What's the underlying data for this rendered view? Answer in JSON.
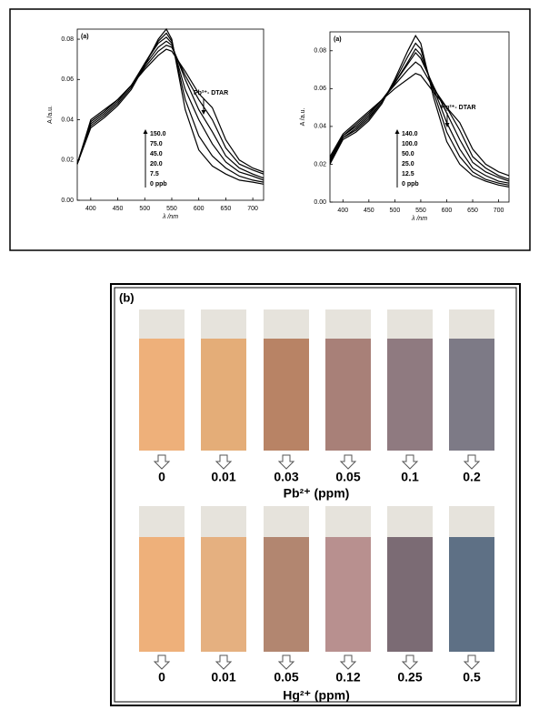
{
  "chart_data": [
    {
      "type": "line",
      "panel": "(a)",
      "annotation": "Pb²⁺- DTAR",
      "xlabel": "λ /nm",
      "ylabel": "A /a.u.",
      "x": [
        375,
        400,
        425,
        450,
        475,
        500,
        525,
        540,
        550,
        575,
        600,
        625,
        650,
        675,
        700,
        720
      ],
      "xlim": [
        375,
        720
      ],
      "xticks": [
        400,
        450,
        500,
        550,
        600,
        650,
        700
      ],
      "ylim": [
        0,
        0.085
      ],
      "yticks": [
        {
          "value": 0,
          "label": "0.00"
        },
        {
          "value": 0.02,
          "label": "0.02"
        },
        {
          "value": 0.04,
          "label": "0.04"
        },
        {
          "value": 0.06,
          "label": "0.06"
        },
        {
          "value": 0.08,
          "label": "0.08"
        }
      ],
      "series": [
        {
          "name": "150.0",
          "color": "#000",
          "values": [
            0.018,
            0.04,
            0.045,
            0.05,
            0.057,
            0.065,
            0.072,
            0.075,
            0.074,
            0.064,
            0.053,
            0.046,
            0.03,
            0.02,
            0.016,
            0.014
          ]
        },
        {
          "name": "75.0",
          "color": "#000",
          "values": [
            0.018,
            0.039,
            0.044,
            0.05,
            0.057,
            0.066,
            0.074,
            0.077,
            0.076,
            0.062,
            0.05,
            0.04,
            0.026,
            0.018,
            0.015,
            0.013
          ]
        },
        {
          "name": "45.0",
          "color": "#000",
          "values": [
            0.018,
            0.039,
            0.044,
            0.05,
            0.057,
            0.067,
            0.076,
            0.079,
            0.077,
            0.06,
            0.045,
            0.034,
            0.022,
            0.016,
            0.013,
            0.011
          ]
        },
        {
          "name": "20.0",
          "color": "#000",
          "values": [
            0.018,
            0.038,
            0.043,
            0.049,
            0.057,
            0.068,
            0.078,
            0.081,
            0.078,
            0.055,
            0.04,
            0.028,
            0.019,
            0.014,
            0.012,
            0.01
          ]
        },
        {
          "name": "7.5",
          "color": "#000",
          "values": [
            0.018,
            0.037,
            0.042,
            0.048,
            0.056,
            0.068,
            0.079,
            0.083,
            0.079,
            0.05,
            0.032,
            0.022,
            0.016,
            0.012,
            0.01,
            0.009
          ]
        },
        {
          "name": "0 ppb",
          "color": "#000",
          "values": [
            0.018,
            0.036,
            0.041,
            0.047,
            0.055,
            0.067,
            0.08,
            0.085,
            0.08,
            0.045,
            0.025,
            0.017,
            0.013,
            0.01,
            0.009,
            0.008
          ]
        }
      ]
    },
    {
      "type": "line",
      "panel": "(a)",
      "annotation": "Hg²⁺- DTAR",
      "xlabel": "λ /nm",
      "ylabel": "A /a.u.",
      "x": [
        375,
        400,
        425,
        450,
        475,
        500,
        525,
        540,
        550,
        575,
        600,
        625,
        650,
        675,
        700,
        720
      ],
      "xlim": [
        375,
        720
      ],
      "xticks": [
        400,
        450,
        500,
        550,
        600,
        650,
        700
      ],
      "ylim": [
        0,
        0.09
      ],
      "yticks": [
        {
          "value": 0,
          "label": "0.00"
        },
        {
          "value": 0.02,
          "label": "0.02"
        },
        {
          "value": 0.04,
          "label": "0.04"
        },
        {
          "value": 0.06,
          "label": "0.06"
        },
        {
          "value": 0.08,
          "label": "0.08"
        }
      ],
      "series": [
        {
          "name": "140.0",
          "color": "#000",
          "values": [
            0.024,
            0.036,
            0.042,
            0.048,
            0.054,
            0.06,
            0.065,
            0.068,
            0.067,
            0.058,
            0.05,
            0.042,
            0.028,
            0.02,
            0.016,
            0.014
          ]
        },
        {
          "name": "100.0",
          "color": "#000",
          "values": [
            0.023,
            0.035,
            0.041,
            0.047,
            0.054,
            0.062,
            0.07,
            0.074,
            0.072,
            0.06,
            0.05,
            0.038,
            0.024,
            0.018,
            0.014,
            0.012
          ]
        },
        {
          "name": "50.0",
          "color": "#000",
          "values": [
            0.022,
            0.035,
            0.04,
            0.046,
            0.054,
            0.063,
            0.073,
            0.079,
            0.076,
            0.061,
            0.047,
            0.033,
            0.021,
            0.016,
            0.013,
            0.011
          ]
        },
        {
          "name": "25.0",
          "color": "#000",
          "values": [
            0.022,
            0.034,
            0.039,
            0.045,
            0.053,
            0.063,
            0.074,
            0.081,
            0.078,
            0.06,
            0.042,
            0.028,
            0.018,
            0.014,
            0.011,
            0.01
          ]
        },
        {
          "name": "12.5",
          "color": "#000",
          "values": [
            0.021,
            0.034,
            0.038,
            0.044,
            0.053,
            0.064,
            0.077,
            0.084,
            0.081,
            0.058,
            0.037,
            0.024,
            0.016,
            0.012,
            0.01,
            0.009
          ]
        },
        {
          "name": "0 ppb",
          "color": "#000",
          "values": [
            0.02,
            0.033,
            0.037,
            0.043,
            0.052,
            0.065,
            0.08,
            0.088,
            0.084,
            0.055,
            0.032,
            0.02,
            0.014,
            0.011,
            0.009,
            0.008
          ]
        }
      ]
    }
  ],
  "strips": {
    "panel": "(b)",
    "rows": [
      {
        "caption": "Pb²⁺ (ppm)",
        "labels": [
          "0",
          "0.01",
          "0.03",
          "0.05",
          "0.1",
          "0.2"
        ],
        "colors": [
          "#eeb07a",
          "#e4ad78",
          "#b88365",
          "#a88078",
          "#8f7a80",
          "#7d7a86"
        ]
      },
      {
        "caption": "Hg²⁺ (ppm)",
        "labels": [
          "0",
          "0.01",
          "0.05",
          "0.12",
          "0.25",
          "0.5"
        ],
        "colors": [
          "#eeb07a",
          "#e5b080",
          "#b28670",
          "#b8908f",
          "#7b6b74",
          "#5e7085"
        ]
      }
    ]
  }
}
